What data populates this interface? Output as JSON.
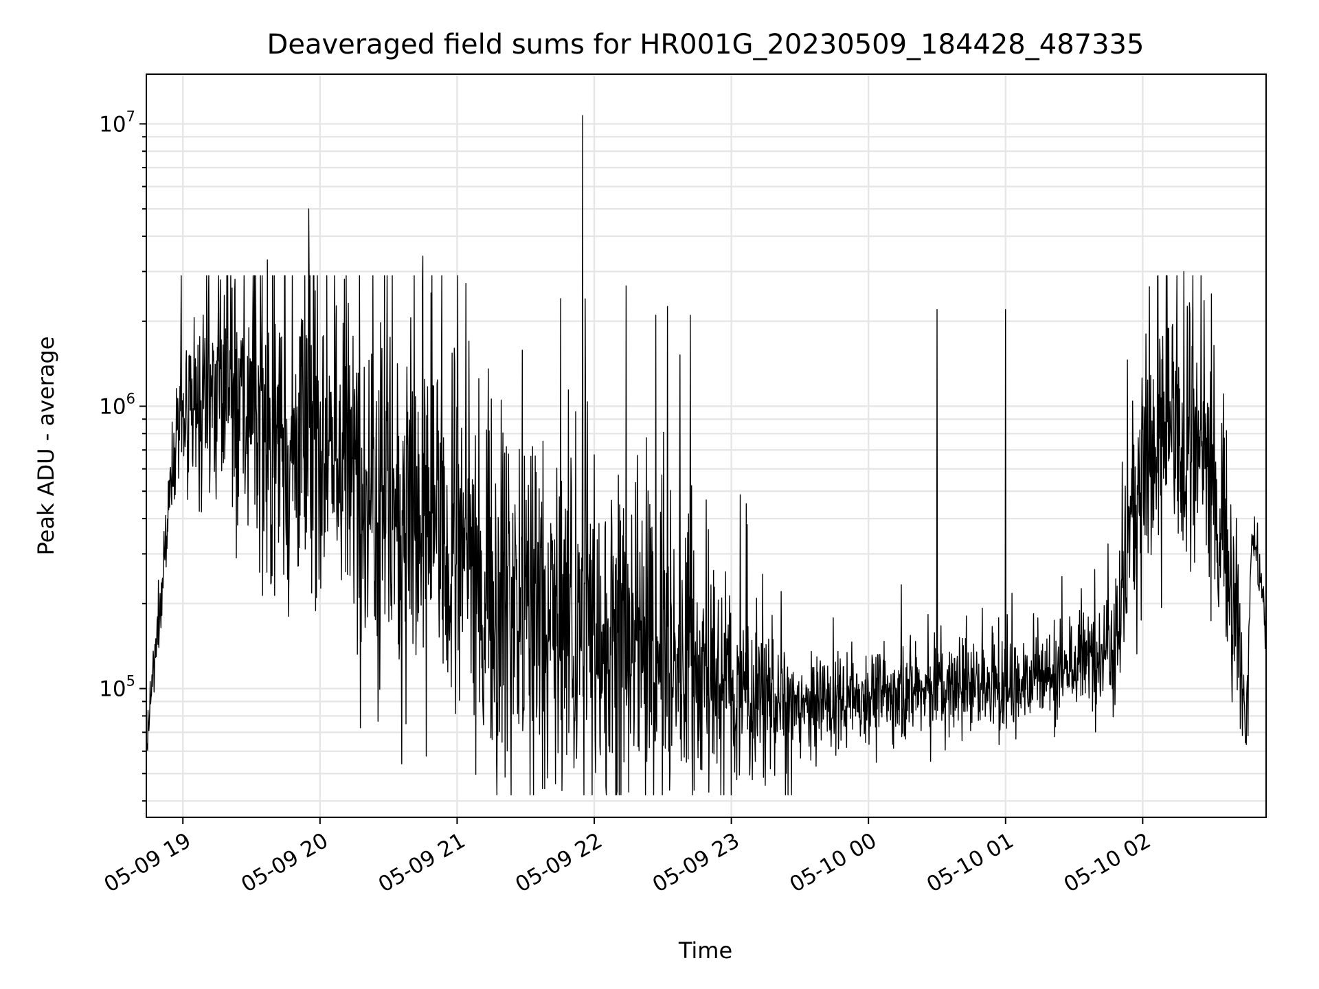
{
  "chart_data": {
    "type": "line",
    "title": "Deaveraged field sums for HR001G_20230509_184428_487335",
    "xlabel": "Time",
    "ylabel": "Peak ADU - average",
    "y_scale": "log",
    "ylim": [
      35000,
      15000000
    ],
    "xlim": [
      "2023-05-09 18:44",
      "2023-05-10 02:54"
    ],
    "grid": true,
    "line_color": "#000000",
    "grid_color": "#e6e6e6",
    "x_ticks": [
      {
        "value": "2023-05-09 19:00",
        "label": "05-09 19"
      },
      {
        "value": "2023-05-09 20:00",
        "label": "05-09 20"
      },
      {
        "value": "2023-05-09 21:00",
        "label": "05-09 21"
      },
      {
        "value": "2023-05-09 22:00",
        "label": "05-09 22"
      },
      {
        "value": "2023-05-09 23:00",
        "label": "05-09 23"
      },
      {
        "value": "2023-05-10 00:00",
        "label": "05-10 00"
      },
      {
        "value": "2023-05-10 01:00",
        "label": "05-10 01"
      },
      {
        "value": "2023-05-10 02:00",
        "label": "05-10 02"
      }
    ],
    "y_ticks": [
      {
        "value": 100000,
        "base": "10",
        "exp": "5"
      },
      {
        "value": 1000000,
        "base": "10",
        "exp": "6"
      },
      {
        "value": 10000000,
        "base": "10",
        "exp": "7"
      }
    ],
    "series": [
      {
        "values": [
          {
            "t": "2023-05-09 18:44",
            "baseline": 60000,
            "spread": 1.2
          },
          {
            "t": "2023-05-09 18:48",
            "baseline": 130000,
            "spread": 1.4
          },
          {
            "t": "2023-05-09 18:53",
            "baseline": 400000,
            "spread": 1.6
          },
          {
            "t": "2023-05-09 18:57",
            "baseline": 900000,
            "spread": 1.8
          },
          {
            "t": "2023-05-09 19:05",
            "baseline": 800000,
            "spread": 2.5
          },
          {
            "t": "2023-05-09 19:15",
            "baseline": 1200000,
            "spread": 3.0
          },
          {
            "t": "2023-05-09 19:30",
            "baseline": 1000000,
            "spread": 4.0
          },
          {
            "t": "2023-05-09 19:45",
            "baseline": 700000,
            "spread": 5.0
          },
          {
            "t": "2023-05-09 20:00",
            "baseline": 800000,
            "spread": 5.0
          },
          {
            "t": "2023-05-09 20:30",
            "baseline": 500000,
            "spread": 5.5
          },
          {
            "t": "2023-05-09 21:00",
            "baseline": 300000,
            "spread": 5.5
          },
          {
            "t": "2023-05-09 21:30",
            "baseline": 200000,
            "spread": 5.5
          },
          {
            "t": "2023-05-09 22:00",
            "baseline": 160000,
            "spread": 5.0
          },
          {
            "t": "2023-05-09 22:30",
            "baseline": 130000,
            "spread": 4.5
          },
          {
            "t": "2023-05-09 23:00",
            "baseline": 100000,
            "spread": 2.5
          },
          {
            "t": "2023-05-09 23:30",
            "baseline": 85000,
            "spread": 1.6
          },
          {
            "t": "2023-05-10 00:00",
            "baseline": 95000,
            "spread": 1.5
          },
          {
            "t": "2023-05-10 00:30",
            "baseline": 100000,
            "spread": 1.5
          },
          {
            "t": "2023-05-10 01:00",
            "baseline": 100000,
            "spread": 1.5
          },
          {
            "t": "2023-05-10 01:30",
            "baseline": 120000,
            "spread": 1.6
          },
          {
            "t": "2023-05-10 01:50",
            "baseline": 160000,
            "spread": 1.8
          },
          {
            "t": "2023-05-10 01:55",
            "baseline": 500000,
            "spread": 3.0
          },
          {
            "t": "2023-05-10 02:10",
            "baseline": 800000,
            "spread": 3.5
          },
          {
            "t": "2023-05-10 02:30",
            "baseline": 600000,
            "spread": 3.5
          },
          {
            "t": "2023-05-10 02:40",
            "baseline": 250000,
            "spread": 2.5
          },
          {
            "t": "2023-05-10 02:45",
            "baseline": 70000,
            "spread": 1.3
          },
          {
            "t": "2023-05-10 02:48",
            "baseline": 380000,
            "spread": 1.3
          },
          {
            "t": "2023-05-10 02:54",
            "baseline": 170000,
            "spread": 1.3
          }
        ],
        "peaks": [
          {
            "t": "2023-05-09 19:37",
            "value": 3300000
          },
          {
            "t": "2023-05-09 19:55",
            "value": 5000000
          },
          {
            "t": "2023-05-09 20:45",
            "value": 3400000
          },
          {
            "t": "2023-05-09 21:55",
            "value": 10700000
          },
          {
            "t": "2023-05-09 21:56",
            "value": 2400000
          },
          {
            "t": "2023-05-09 22:27",
            "value": 2100000
          },
          {
            "t": "2023-05-09 22:42",
            "value": 2100000
          },
          {
            "t": "2023-05-10 00:30",
            "value": 2200000
          },
          {
            "t": "2023-05-10 01:00",
            "value": 2200000
          },
          {
            "t": "2023-05-10 02:18",
            "value": 3000000
          },
          {
            "t": "2023-05-10 02:30",
            "value": 2500000
          }
        ],
        "dips": [
          {
            "t": "2023-05-09 21:43",
            "value": 46000
          },
          {
            "t": "2023-05-09 22:15",
            "value": 43000
          },
          {
            "t": "2023-05-09 22:05",
            "value": 45000
          },
          {
            "t": "2023-05-10 02:46",
            "value": 68000
          }
        ]
      }
    ]
  }
}
